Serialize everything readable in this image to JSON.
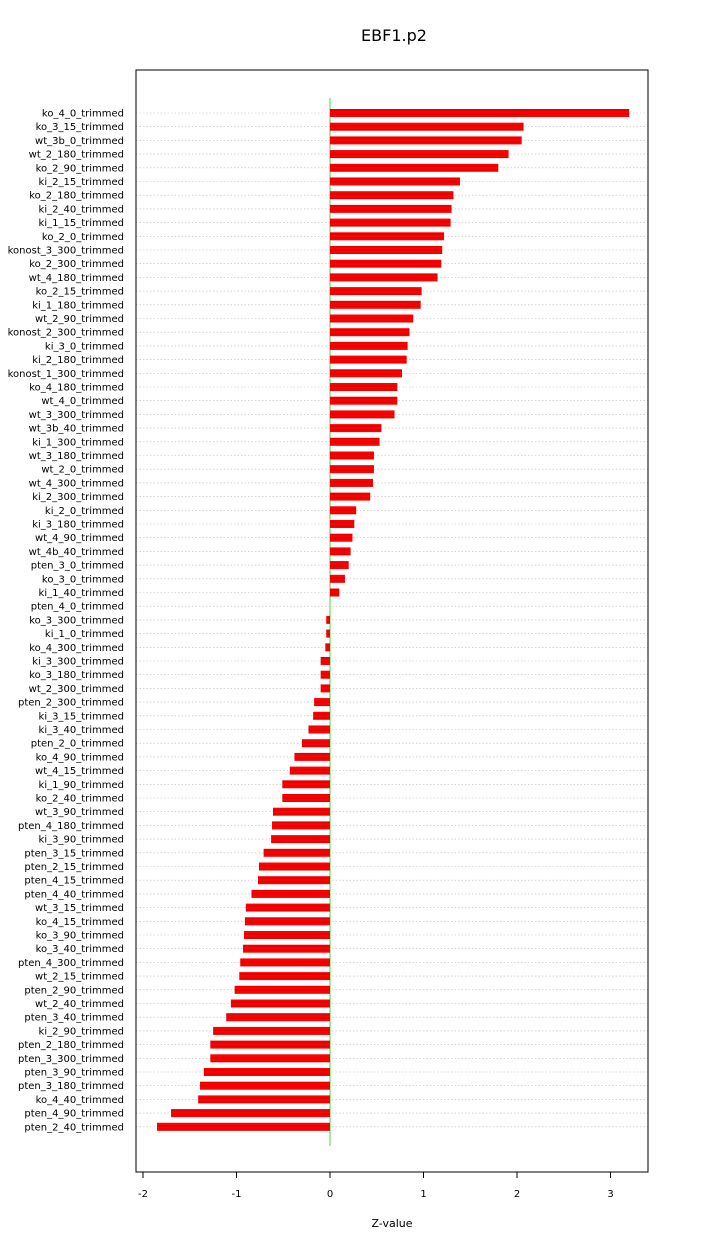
{
  "chart_data": {
    "type": "bar",
    "orientation": "horizontal",
    "title": "EBF1.p2",
    "xlabel": "Z-value",
    "ylabel": "",
    "xlim": [
      -2.0,
      3.4
    ],
    "xticks": [
      -2,
      -1,
      0,
      1,
      2,
      3
    ],
    "grid": "horizontal dotted",
    "colors": {
      "bar": "#ff0000",
      "bar_hatch": "#b00000",
      "zero_line": "#66dd66",
      "grid": "#bbbbbb"
    },
    "categories": [
      "ko_4_0_trimmed",
      "ko_3_15_trimmed",
      "wt_3b_0_trimmed",
      "wt_2_180_trimmed",
      "ko_2_90_trimmed",
      "ki_2_15_trimmed",
      "ko_2_180_trimmed",
      "ki_2_40_trimmed",
      "ki_1_15_trimmed",
      "ko_2_0_trimmed",
      "konost_3_300_trimmed",
      "ko_2_300_trimmed",
      "wt_4_180_trimmed",
      "ko_2_15_trimmed",
      "ki_1_180_trimmed",
      "wt_2_90_trimmed",
      "konost_2_300_trimmed",
      "ki_3_0_trimmed",
      "ki_2_180_trimmed",
      "konost_1_300_trimmed",
      "ko_4_180_trimmed",
      "wt_4_0_trimmed",
      "wt_3_300_trimmed",
      "wt_3b_40_trimmed",
      "ki_1_300_trimmed",
      "wt_3_180_trimmed",
      "wt_2_0_trimmed",
      "wt_4_300_trimmed",
      "ki_2_300_trimmed",
      "ki_2_0_trimmed",
      "ki_3_180_trimmed",
      "wt_4_90_trimmed",
      "wt_4b_40_trimmed",
      "pten_3_0_trimmed",
      "ko_3_0_trimmed",
      "ki_1_40_trimmed",
      "pten_4_0_trimmed",
      "ko_3_300_trimmed",
      "ki_1_0_trimmed",
      "ko_4_300_trimmed",
      "ki_3_300_trimmed",
      "ko_3_180_trimmed",
      "wt_2_300_trimmed",
      "pten_2_300_trimmed",
      "ki_3_15_trimmed",
      "ki_3_40_trimmed",
      "pten_2_0_trimmed",
      "ko_4_90_trimmed",
      "wt_4_15_trimmed",
      "ki_1_90_trimmed",
      "ko_2_40_trimmed",
      "wt_3_90_trimmed",
      "pten_4_180_trimmed",
      "ki_3_90_trimmed",
      "pten_3_15_trimmed",
      "pten_2_15_trimmed",
      "pten_4_15_trimmed",
      "pten_4_40_trimmed",
      "wt_3_15_trimmed",
      "ko_4_15_trimmed",
      "ko_3_90_trimmed",
      "ko_3_40_trimmed",
      "pten_4_300_trimmed",
      "wt_2_15_trimmed",
      "pten_2_90_trimmed",
      "wt_2_40_trimmed",
      "pten_3_40_trimmed",
      "ki_2_90_trimmed",
      "pten_2_180_trimmed",
      "pten_3_300_trimmed",
      "pten_3_90_trimmed",
      "pten_3_180_trimmed",
      "ko_4_40_trimmed",
      "pten_4_90_trimmed",
      "pten_2_40_trimmed"
    ],
    "values": [
      3.2,
      2.07,
      2.05,
      1.91,
      1.8,
      1.39,
      1.32,
      1.3,
      1.29,
      1.22,
      1.2,
      1.19,
      1.15,
      0.98,
      0.97,
      0.89,
      0.85,
      0.83,
      0.82,
      0.77,
      0.72,
      0.72,
      0.69,
      0.55,
      0.53,
      0.47,
      0.47,
      0.46,
      0.43,
      0.28,
      0.26,
      0.24,
      0.22,
      0.2,
      0.16,
      0.1,
      0.0,
      -0.04,
      -0.04,
      -0.05,
      -0.1,
      -0.1,
      -0.1,
      -0.17,
      -0.18,
      -0.23,
      -0.3,
      -0.38,
      -0.43,
      -0.51,
      -0.51,
      -0.61,
      -0.62,
      -0.63,
      -0.71,
      -0.76,
      -0.77,
      -0.84,
      -0.9,
      -0.91,
      -0.92,
      -0.93,
      -0.96,
      -0.97,
      -1.02,
      -1.06,
      -1.11,
      -1.25,
      -1.28,
      -1.28,
      -1.35,
      -1.39,
      -1.41,
      -1.7,
      -1.85
    ]
  }
}
